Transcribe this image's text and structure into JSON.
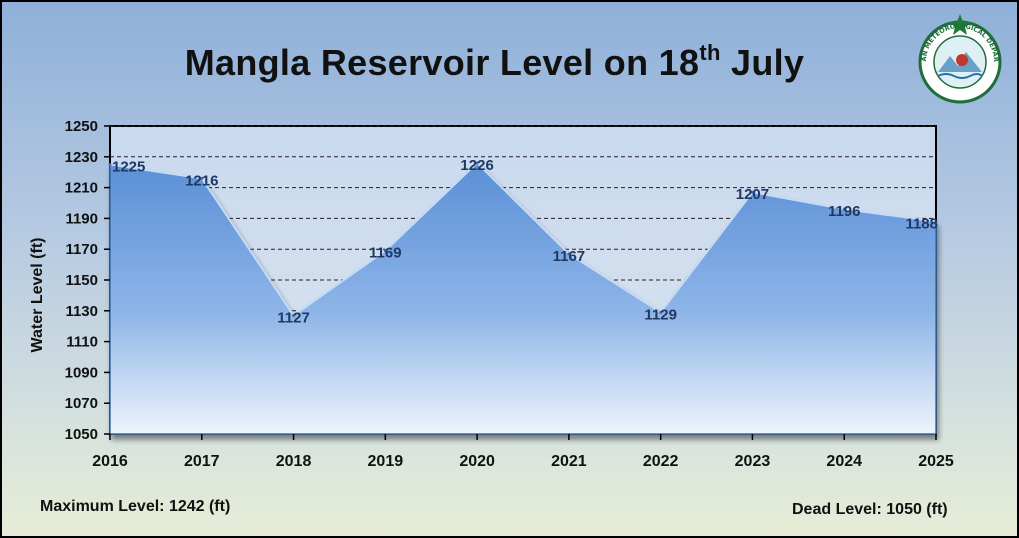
{
  "title": {
    "main": "Mangla Reservoir Level on 18",
    "superscript": "th",
    "suffix": "July"
  },
  "notes": {
    "max_label": "Maximum Level:",
    "max_value": "1242 (ft)",
    "dead_label": "Dead Level:",
    "dead_value": "1050 (ft)"
  },
  "logo": {
    "ring_text": "PAKISTAN METEOROLOGICAL DEPARTMENT",
    "colors": {
      "ring": "#1f6d3a",
      "star": "#1f7a3a"
    }
  },
  "chart_data": {
    "type": "area",
    "title": "Mangla Reservoir Level on 18th July",
    "ylabel": "Water Level (ft)",
    "xlabel": "",
    "x": [
      "2016",
      "2017",
      "2018",
      "2019",
      "2020",
      "2021",
      "2022",
      "2023",
      "2024",
      "2025"
    ],
    "series": [
      {
        "values": [
          1225,
          1216,
          1127,
          1169,
          1226,
          1167,
          1129,
          1207,
          1196,
          1188
        ],
        "labels": [
          "1225",
          "1216",
          "1127",
          "1169",
          "1226",
          "1167",
          "1129",
          "1207",
          "1196",
          "1188"
        ]
      }
    ],
    "ylim": [
      1050,
      1250
    ],
    "yticks": [
      1050,
      1070,
      1090,
      1110,
      1130,
      1150,
      1170,
      1190,
      1210,
      1230,
      1250
    ],
    "grid": "dashed horizontal",
    "colors": {
      "area_top": "#5b8fd6",
      "area_bottom": "#eef4fb",
      "grid": "#222222",
      "data_label": "#1f3864",
      "plot_bg_top": "#c9d9ee",
      "plot_bg_bottom": "#d9e4ee"
    }
  }
}
